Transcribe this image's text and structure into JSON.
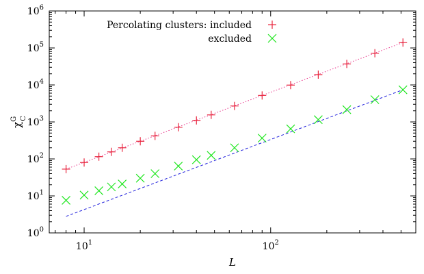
{
  "chart_data": {
    "type": "scatter",
    "title": "",
    "xlabel": "L",
    "ylabel": {
      "base": "χ",
      "sup": "G",
      "sub": "C"
    },
    "x_scale": "log",
    "y_scale": "log",
    "xlim": [
      6.5,
      600
    ],
    "ylim": [
      1,
      1000000
    ],
    "grid": false,
    "legend_placement": "top-left",
    "x_ticks": [
      {
        "value": 10,
        "base": "10",
        "exp": "1"
      },
      {
        "value": 100,
        "base": "10",
        "exp": "2"
      }
    ],
    "y_ticks": [
      {
        "value": 1,
        "base": "10",
        "exp": "0"
      },
      {
        "value": 10,
        "base": "10",
        "exp": "1"
      },
      {
        "value": 100,
        "base": "10",
        "exp": "2"
      },
      {
        "value": 1000,
        "base": "10",
        "exp": "3"
      },
      {
        "value": 10000,
        "base": "10",
        "exp": "4"
      },
      {
        "value": 100000,
        "base": "10",
        "exp": "5"
      },
      {
        "value": 1000000,
        "base": "10",
        "exp": "6"
      }
    ],
    "legend_title": "Percolating clusters:",
    "series": [
      {
        "name": "included",
        "marker": "plus",
        "color": "#e8243c",
        "x": [
          8,
          10,
          12,
          14,
          16,
          20,
          24,
          32,
          40,
          48,
          64,
          90,
          128,
          180,
          256,
          362,
          512
        ],
        "y": [
          53,
          80,
          115,
          155,
          200,
          300,
          420,
          720,
          1100,
          1550,
          2700,
          5200,
          9900,
          19000,
          37000,
          72000,
          140000
        ]
      },
      {
        "name": "excluded",
        "marker": "x",
        "color": "#1ee61e",
        "x": [
          8,
          10,
          12,
          14,
          16,
          20,
          24,
          32,
          40,
          48,
          64,
          90,
          128,
          180,
          256,
          362,
          512
        ],
        "y": [
          7.6,
          10.5,
          13.8,
          17.5,
          21,
          30,
          40,
          64,
          95,
          125,
          200,
          365,
          650,
          1150,
          2150,
          4000,
          7400
        ]
      }
    ],
    "fits": [
      {
        "color": "#e8338a",
        "style": "dotted",
        "x": [
          8,
          512
        ],
        "y": [
          53,
          140000
        ]
      },
      {
        "color": "#2222dd",
        "style": "dashed",
        "x": [
          8,
          512
        ],
        "y": [
          2.8,
          7400
        ]
      }
    ]
  }
}
